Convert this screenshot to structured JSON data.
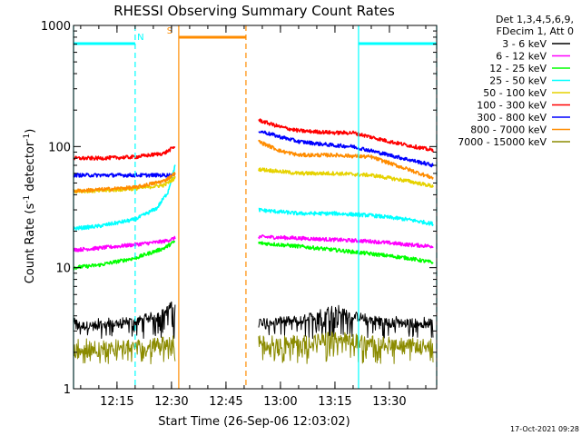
{
  "chart_data": {
    "type": "line",
    "title": "RHESSI Observing Summary Count Rates",
    "xlabel": "Start Time (26-Sep-06 12:03:02)",
    "ylabel_main": "Count Rate (s",
    "ylabel_sup1": "-1",
    "ylabel_mid": " detector",
    "ylabel_sup2": "-1",
    "ylabel_end": ")",
    "y_scale": "log",
    "ylim": [
      1,
      1000
    ],
    "xlim": [
      "12:03:02",
      "13:43:00"
    ],
    "x_ticks": [
      "12:15",
      "12:30",
      "12:45",
      "13:00",
      "13:15",
      "13:30"
    ],
    "y_ticks": [
      "1",
      "10",
      "100",
      "1000"
    ],
    "legend": {
      "header1": "Det 1,3,4,5,6,9,",
      "header2": "FDecim 1, Att 0",
      "placement": "right",
      "entries": [
        {
          "label": "3 - 6 keV",
          "color": "#000000"
        },
        {
          "label": "6 - 12 keV",
          "color": "#ff00ff"
        },
        {
          "label": "12 - 25 keV",
          "color": "#00ff00"
        },
        {
          "label": "25 - 50 keV",
          "color": "#00ffff"
        },
        {
          "label": "50 - 100 keV",
          "color": "#e6d200"
        },
        {
          "label": "100 - 300 keV",
          "color": "#ff0000"
        },
        {
          "label": "300 - 800 keV",
          "color": "#0000ff"
        },
        {
          "label": "800 - 7000 keV",
          "color": "#ff8c00"
        },
        {
          "label": "7000 - 15000 keV",
          "color": "#8b8b00"
        }
      ]
    },
    "markers": [
      {
        "label": "N",
        "color": "#00ffff",
        "kind": "night",
        "intervals": [
          [
            "12:03:02",
            "12:20:00"
          ],
          [
            "13:21:30",
            "13:43:00"
          ]
        ]
      },
      {
        "label": "S",
        "color": "#ff8c00",
        "kind": "saa",
        "intervals": [
          [
            "12:32:00",
            "12:50:30"
          ]
        ]
      }
    ],
    "segments": [
      [
        "12:03:02",
        "12:31:00"
      ],
      [
        "12:54:00",
        "13:42:00"
      ]
    ],
    "series": [
      {
        "color": "#000000",
        "band": "3-6 keV",
        "noise": 0.09,
        "flicker": [
          2.6,
          4.0
        ],
        "x": [
          "12:03",
          "12:10",
          "12:20",
          "12:28",
          "12:31",
          "12:54",
          "13:05",
          "13:15",
          "13:20",
          "13:30",
          "13:42"
        ],
        "values": [
          3.3,
          3.3,
          3.6,
          4.2,
          5.2,
          3.6,
          3.6,
          4.6,
          4.0,
          3.5,
          3.5
        ]
      },
      {
        "color": "#ff00ff",
        "band": "6-12 keV",
        "x": [
          "12:03",
          "12:10",
          "12:20",
          "12:28",
          "12:31",
          "12:54",
          "13:05",
          "13:15",
          "13:25",
          "13:35",
          "13:42"
        ],
        "values": [
          14,
          14.5,
          15.5,
          16.5,
          17.5,
          18,
          17.5,
          17,
          16.5,
          15.5,
          15
        ]
      },
      {
        "color": "#00ff00",
        "band": "12-25 keV",
        "x": [
          "12:03",
          "12:10",
          "12:20",
          "12:28",
          "12:31",
          "12:54",
          "13:05",
          "13:15",
          "13:25",
          "13:35",
          "13:42"
        ],
        "values": [
          10,
          10.5,
          12,
          14.5,
          16.5,
          16,
          15,
          14,
          13,
          12,
          11
        ]
      },
      {
        "color": "#00ffff",
        "band": "25-50 keV",
        "x": [
          "12:03",
          "12:10",
          "12:20",
          "12:26",
          "12:29",
          "12:31",
          "12:54",
          "13:05",
          "13:15",
          "13:25",
          "13:35",
          "13:42"
        ],
        "values": [
          21,
          22,
          25,
          31,
          42,
          70,
          30,
          28,
          28,
          27,
          25,
          23
        ]
      },
      {
        "color": "#e6d200",
        "band": "50-100 keV",
        "x": [
          "12:03",
          "12:10",
          "12:20",
          "12:28",
          "12:31",
          "12:54",
          "13:05",
          "13:15",
          "13:25",
          "13:35",
          "13:42"
        ],
        "values": [
          43,
          43,
          45,
          48,
          55,
          65,
          60,
          60,
          58,
          52,
          47
        ]
      },
      {
        "color": "#ff0000",
        "band": "100-300 keV",
        "x": [
          "12:03",
          "12:10",
          "12:20",
          "12:28",
          "12:31",
          "12:54",
          "13:00",
          "13:05",
          "13:15",
          "13:20",
          "13:30",
          "13:42"
        ],
        "values": [
          80,
          80,
          82,
          88,
          100,
          165,
          145,
          135,
          130,
          130,
          110,
          93
        ]
      },
      {
        "color": "#0000ff",
        "band": "300-800 keV",
        "x": [
          "12:03",
          "12:20",
          "12:31",
          "12:54",
          "13:00",
          "13:05",
          "13:15",
          "13:20",
          "13:30",
          "13:42"
        ],
        "values": [
          58,
          58,
          58,
          135,
          120,
          110,
          102,
          100,
          85,
          70
        ]
      },
      {
        "color": "#ff8c00",
        "band": "800-7000 keV",
        "x": [
          "12:03",
          "12:10",
          "12:20",
          "12:28",
          "12:31",
          "12:54",
          "13:00",
          "13:05",
          "13:15",
          "13:25",
          "13:35",
          "13:42"
        ],
        "values": [
          43,
          44,
          46,
          52,
          60,
          110,
          92,
          85,
          85,
          82,
          65,
          55
        ]
      },
      {
        "color": "#8b8b00",
        "band": "7000-15000 keV",
        "noise": 0.14,
        "flicker": [
          1.6,
          2.6
        ],
        "x": [
          "12:03",
          "12:10",
          "12:20",
          "12:31",
          "12:54",
          "13:05",
          "13:15",
          "13:25",
          "13:35",
          "13:42"
        ],
        "values": [
          2.0,
          2.1,
          2.2,
          2.4,
          2.4,
          2.4,
          2.6,
          2.4,
          2.3,
          2.2
        ]
      }
    ]
  },
  "footer": {
    "timestamp": "17-Oct-2021 09:28"
  }
}
